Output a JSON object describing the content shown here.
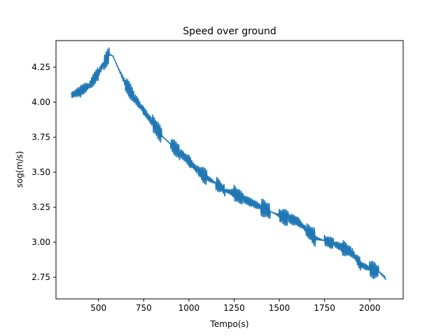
{
  "chart_data": {
    "type": "line",
    "title": "Speed over ground",
    "xlabel": "Tempo(s)",
    "ylabel": "sog(m/s)",
    "xlim": [
      265,
      2185
    ],
    "ylim": [
      2.595,
      4.44
    ],
    "xticks": [
      500,
      750,
      1000,
      1250,
      1500,
      1750,
      2000
    ],
    "xtick_labels": [
      "500",
      "750",
      "1000",
      "1250",
      "1500",
      "1750",
      "2000"
    ],
    "yticks": [
      2.75,
      3.0,
      3.25,
      3.5,
      3.75,
      4.0,
      4.25
    ],
    "ytick_labels": [
      "2.75",
      "3.00",
      "3.25",
      "3.50",
      "3.75",
      "4.00",
      "4.25"
    ],
    "grid": false,
    "series": [
      {
        "color": "#1f77b4",
        "x": [
          350,
          400,
          450,
          500,
          530,
          560,
          580,
          600,
          650,
          700,
          750,
          800,
          850,
          900,
          950,
          1000,
          1050,
          1100,
          1150,
          1200,
          1250,
          1300,
          1350,
          1400,
          1450,
          1500,
          1550,
          1600,
          1650,
          1700,
          1750,
          1800,
          1850,
          1900,
          1950,
          2000,
          2050,
          2090
        ],
        "y": [
          4.05,
          4.08,
          4.12,
          4.21,
          4.28,
          4.34,
          4.33,
          4.27,
          4.13,
          4.03,
          3.94,
          3.85,
          3.76,
          3.7,
          3.64,
          3.58,
          3.51,
          3.46,
          3.42,
          3.37,
          3.35,
          3.31,
          3.28,
          3.25,
          3.22,
          3.19,
          3.17,
          3.15,
          3.09,
          3.03,
          3.01,
          2.99,
          2.96,
          2.93,
          2.84,
          2.81,
          2.79,
          2.74
        ]
      }
    ]
  }
}
